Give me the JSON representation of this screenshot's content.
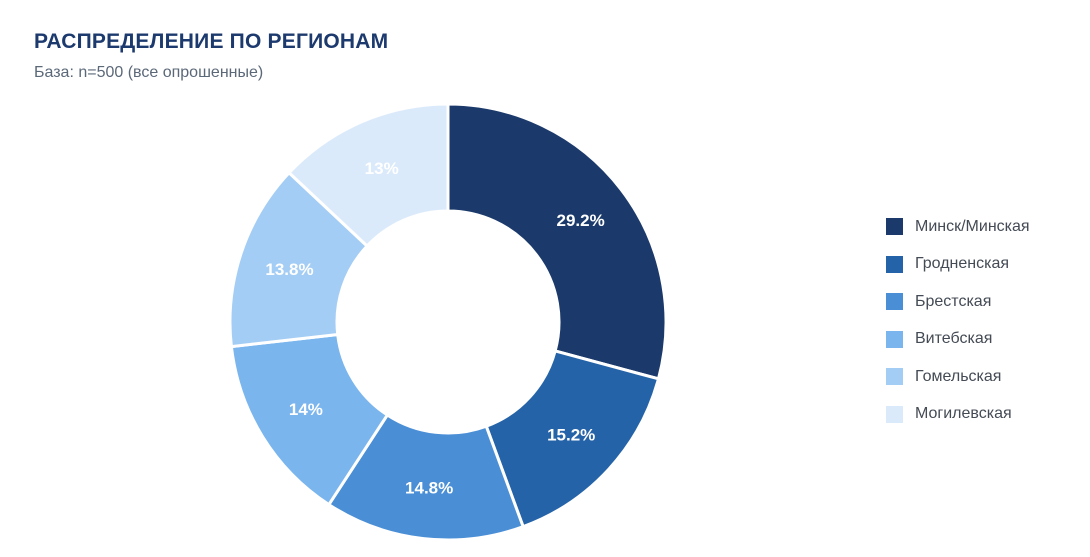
{
  "title": "РАСПРЕДЕЛЕНИЕ ПО РЕГИОНАМ",
  "subtitle": "База: n=500 (все опрошенные)",
  "chart_data": {
    "type": "pie",
    "title": "РАСПРЕДЕЛЕНИЕ ПО РЕГИОНАМ",
    "subtitle": "База: n=500 (все опрошенные)",
    "donut": true,
    "legend_position": "right",
    "categories": [
      "Минск/Минская",
      "Гродненская",
      "Брестская",
      "Витебская",
      "Гомельская",
      "Могилевская"
    ],
    "values": [
      29.2,
      15.2,
      14.8,
      14,
      13.8,
      13
    ],
    "labels": [
      "29.2%",
      "15.2%",
      "14.8%",
      "14%",
      "13.8%",
      "13%"
    ],
    "colors": [
      "#1b3a6b",
      "#2563a8",
      "#4a8fd6",
      "#7ab5ee",
      "#a3cdf5",
      "#dbeafb"
    ]
  }
}
